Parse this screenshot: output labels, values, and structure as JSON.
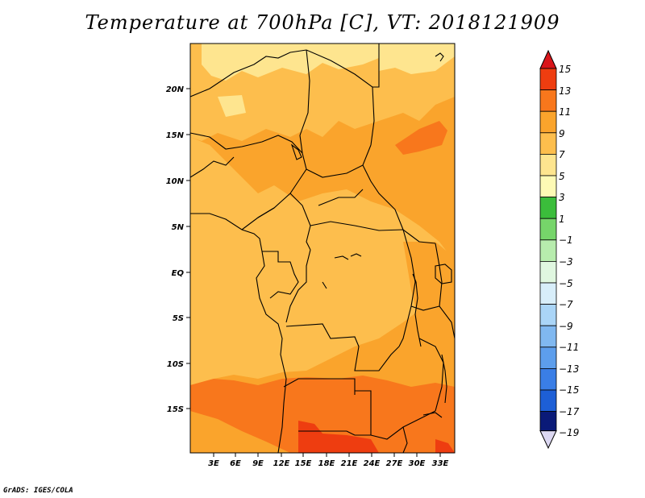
{
  "title": "Temperature at 700hPa [C], VT: 2018121909",
  "credit": "GrADS: IGES/COLA",
  "map": {
    "lat_labels": [
      "20N",
      "15N",
      "10N",
      "5N",
      "EQ",
      "5S",
      "10S",
      "15S"
    ],
    "lon_labels": [
      "3E",
      "6E",
      "9E",
      "12E",
      "15E",
      "18E",
      "21E",
      "24E",
      "27E",
      "30E",
      "33E"
    ],
    "fill_colors": {
      "5_7": "#fee58f",
      "7_9": "#fdbe4d",
      "9_11": "#faa42c",
      "11_13": "#f8771c",
      "13_15": "#ee3d10"
    }
  },
  "colorbar": {
    "labels": [
      "15",
      "13",
      "11",
      "9",
      "7",
      "5",
      "3",
      "1",
      "−1",
      "−3",
      "−5",
      "−7",
      "−9",
      "−11",
      "−13",
      "−15",
      "−17",
      "−19"
    ],
    "colors": [
      "#d9151a",
      "#ee3d10",
      "#f8771c",
      "#faa42c",
      "#fdbe4d",
      "#fee58f",
      "#fefab5",
      "#3bbd3b",
      "#76d56a",
      "#b7ecad",
      "#e0f7e0",
      "#d8eefa",
      "#aad5f7",
      "#80b8f0",
      "#5d9eec",
      "#3a7ee6",
      "#1d5fd6",
      "#0c3aab",
      "#0a1a78",
      "#dcd8f2"
    ]
  }
}
